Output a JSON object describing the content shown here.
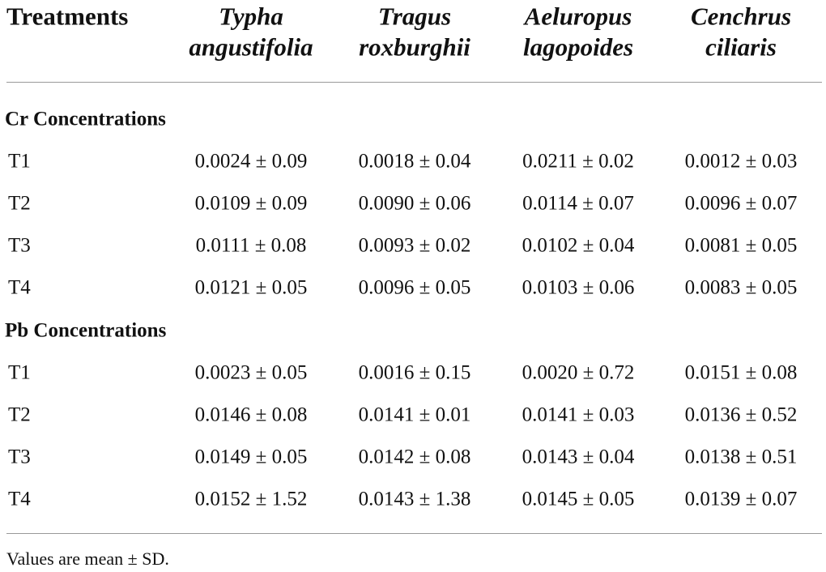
{
  "table": {
    "columns": [
      [
        "Treatments"
      ],
      [
        "Typha",
        "angustifolia"
      ],
      [
        "Tragus",
        "roxburghii"
      ],
      [
        "Aeluropus",
        "lagopoides"
      ],
      [
        "Cenchrus",
        "ciliaris"
      ]
    ],
    "sections": [
      {
        "title": "Cr Concentrations",
        "rows": [
          [
            "T1",
            "0.0024 ± 0.09",
            "0.0018 ± 0.04",
            "0.0211 ± 0.02",
            "0.0012 ± 0.03"
          ],
          [
            "T2",
            "0.0109 ± 0.09",
            "0.0090 ± 0.06",
            "0.0114 ± 0.07",
            "0.0096 ± 0.07"
          ],
          [
            "T3",
            "0.0111 ± 0.08",
            "0.0093 ± 0.02",
            "0.0102 ± 0.04",
            "0.0081 ± 0.05"
          ],
          [
            "T4",
            "0.0121 ± 0.05",
            "0.0096 ± 0.05",
            "0.0103 ± 0.06",
            "0.0083 ± 0.05"
          ]
        ]
      },
      {
        "title": "Pb Concentrations",
        "rows": [
          [
            "T1",
            "0.0023 ± 0.05",
            "0.0016 ± 0.15",
            "0.0020 ± 0.72",
            "0.0151 ± 0.08"
          ],
          [
            "T2",
            "0.0146 ± 0.08",
            "0.0141 ± 0.01",
            "0.0141 ± 0.03",
            "0.0136 ± 0.52"
          ],
          [
            "T3",
            "0.0149 ± 0.05",
            "0.0142 ± 0.08",
            "0.0143 ± 0.04",
            "0.0138 ± 0.51"
          ],
          [
            "T4",
            "0.0152 ± 1.52",
            "0.0143 ± 1.38",
            "0.0145 ± 0.05",
            "0.0139 ± 0.07"
          ]
        ]
      }
    ],
    "footnote": "Values are mean ± SD."
  }
}
